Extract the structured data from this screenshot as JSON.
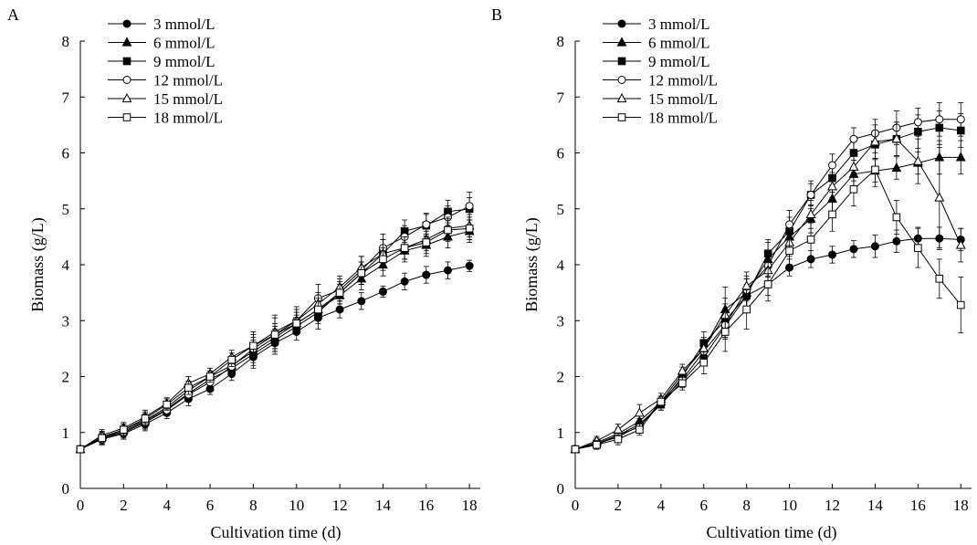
{
  "chart_data": [
    {
      "panel": "A",
      "type": "line",
      "xlabel": "Cultivation time (d)",
      "ylabel": "Biomass (g/L)",
      "xlim": [
        0,
        18.5
      ],
      "ylim": [
        0,
        8
      ],
      "xticks": [
        0,
        2,
        4,
        6,
        8,
        10,
        12,
        14,
        16,
        18
      ],
      "yticks": [
        0,
        1,
        2,
        3,
        4,
        5,
        6,
        7,
        8
      ],
      "legend_position": "top-left",
      "grid": false,
      "x": [
        0,
        1,
        2,
        3,
        4,
        5,
        6,
        7,
        8,
        9,
        10,
        11,
        12,
        13,
        14,
        15,
        16,
        17,
        18
      ],
      "series": [
        {
          "name": "3 mmol/L",
          "marker": "filled-circle",
          "values": [
            0.7,
            0.88,
            0.98,
            1.15,
            1.35,
            1.6,
            1.78,
            2.05,
            2.35,
            2.6,
            2.8,
            3.05,
            3.2,
            3.35,
            3.52,
            3.7,
            3.82,
            3.9,
            3.98
          ],
          "errors": [
            0.03,
            0.1,
            0.1,
            0.12,
            0.1,
            0.12,
            0.1,
            0.12,
            0.2,
            0.2,
            0.15,
            0.2,
            0.15,
            0.15,
            0.1,
            0.15,
            0.15,
            0.15,
            0.1
          ]
        },
        {
          "name": "6 mmol/L",
          "marker": "filled-triangle",
          "values": [
            0.7,
            0.92,
            1.05,
            1.22,
            1.45,
            1.75,
            2.0,
            2.2,
            2.45,
            2.7,
            2.95,
            3.2,
            3.45,
            3.75,
            4.0,
            4.25,
            4.35,
            4.5,
            4.6
          ],
          "errors": [
            0.03,
            0.1,
            0.1,
            0.12,
            0.1,
            0.12,
            0.1,
            0.12,
            0.2,
            0.2,
            0.15,
            0.2,
            0.15,
            0.2,
            0.2,
            0.2,
            0.2,
            0.2,
            0.2
          ]
        },
        {
          "name": "9 mmol/L",
          "marker": "filled-square",
          "values": [
            0.7,
            0.9,
            1.02,
            1.2,
            1.42,
            1.7,
            1.95,
            2.15,
            2.4,
            2.65,
            2.9,
            3.15,
            3.5,
            3.85,
            4.2,
            4.6,
            4.7,
            4.95,
            5.0
          ],
          "errors": [
            0.03,
            0.1,
            0.1,
            0.12,
            0.1,
            0.12,
            0.1,
            0.12,
            0.2,
            0.2,
            0.15,
            0.2,
            0.15,
            0.2,
            0.25,
            0.2,
            0.2,
            0.2,
            0.2
          ]
        },
        {
          "name": "12 mmol/L",
          "marker": "open-circle",
          "values": [
            0.7,
            0.88,
            1.0,
            1.18,
            1.4,
            1.68,
            1.9,
            2.18,
            2.5,
            2.75,
            3.0,
            3.4,
            3.55,
            3.9,
            4.3,
            4.5,
            4.72,
            4.85,
            5.05
          ],
          "errors": [
            0.03,
            0.1,
            0.1,
            0.12,
            0.1,
            0.12,
            0.1,
            0.12,
            0.2,
            0.3,
            0.25,
            0.25,
            0.2,
            0.25,
            0.25,
            0.2,
            0.2,
            0.2,
            0.25
          ]
        },
        {
          "name": "15 mmol/L",
          "marker": "open-triangle",
          "values": [
            0.7,
            0.95,
            1.08,
            1.28,
            1.52,
            1.88,
            2.05,
            2.35,
            2.55,
            2.8,
            3.0,
            3.3,
            3.6,
            3.95,
            4.2,
            4.3,
            4.45,
            4.65,
            4.7
          ],
          "errors": [
            0.03,
            0.1,
            0.1,
            0.12,
            0.1,
            0.12,
            0.1,
            0.12,
            0.25,
            0.3,
            0.2,
            0.2,
            0.2,
            0.2,
            0.25,
            0.2,
            0.2,
            0.2,
            0.2
          ]
        },
        {
          "name": "18 mmol/L",
          "marker": "open-square",
          "values": [
            0.7,
            0.9,
            1.05,
            1.25,
            1.5,
            1.8,
            2.0,
            2.3,
            2.55,
            2.75,
            2.95,
            3.2,
            3.5,
            3.85,
            4.1,
            4.3,
            4.4,
            4.62,
            4.65
          ],
          "errors": [
            0.03,
            0.1,
            0.1,
            0.12,
            0.1,
            0.12,
            0.1,
            0.12,
            0.2,
            0.2,
            0.2,
            0.2,
            0.2,
            0.2,
            0.2,
            0.2,
            0.2,
            0.2,
            0.2
          ]
        }
      ]
    },
    {
      "panel": "B",
      "type": "line",
      "xlabel": "Cultivation time (d)",
      "ylabel": "Biomass (g/L)",
      "xlim": [
        0,
        18.5
      ],
      "ylim": [
        0,
        8
      ],
      "xticks": [
        0,
        2,
        4,
        6,
        8,
        10,
        12,
        14,
        16,
        18
      ],
      "yticks": [
        0,
        1,
        2,
        3,
        4,
        5,
        6,
        7,
        8
      ],
      "legend_position": "top-left",
      "grid": false,
      "x": [
        0,
        1,
        2,
        3,
        4,
        5,
        6,
        7,
        8,
        9,
        10,
        11,
        12,
        13,
        14,
        15,
        16,
        17,
        18
      ],
      "series": [
        {
          "name": "3 mmol/L",
          "marker": "filled-circle",
          "values": [
            0.7,
            0.8,
            0.95,
            1.15,
            1.5,
            1.92,
            2.35,
            2.9,
            3.45,
            3.65,
            3.95,
            4.1,
            4.18,
            4.28,
            4.33,
            4.42,
            4.47,
            4.47,
            4.45
          ],
          "errors": [
            0.03,
            0.08,
            0.1,
            0.1,
            0.1,
            0.12,
            0.15,
            0.2,
            0.2,
            0.2,
            0.15,
            0.15,
            0.15,
            0.15,
            0.2,
            0.2,
            0.2,
            0.2,
            0.2
          ]
        },
        {
          "name": "6 mmol/L",
          "marker": "filled-triangle",
          "values": [
            0.7,
            0.82,
            0.98,
            1.2,
            1.55,
            2.05,
            2.5,
            3.2,
            3.5,
            4.1,
            4.5,
            4.82,
            5.18,
            5.62,
            5.68,
            5.73,
            5.82,
            5.92,
            5.92
          ],
          "errors": [
            0.03,
            0.08,
            0.1,
            0.1,
            0.1,
            0.12,
            0.15,
            0.4,
            0.3,
            0.3,
            0.25,
            0.25,
            0.25,
            0.25,
            0.2,
            0.2,
            0.2,
            0.3,
            0.3
          ]
        },
        {
          "name": "9 mmol/L",
          "marker": "filled-square",
          "values": [
            0.7,
            0.8,
            0.92,
            1.12,
            1.5,
            2.0,
            2.6,
            3.0,
            3.45,
            4.2,
            4.6,
            5.25,
            5.55,
            6.0,
            6.15,
            6.25,
            6.38,
            6.45,
            6.4
          ],
          "errors": [
            0.03,
            0.08,
            0.1,
            0.1,
            0.1,
            0.12,
            0.2,
            0.3,
            0.3,
            0.25,
            0.25,
            0.25,
            0.25,
            0.25,
            0.25,
            0.3,
            0.3,
            0.3,
            0.3
          ]
        },
        {
          "name": "12 mmol/L",
          "marker": "open-circle",
          "values": [
            0.7,
            0.78,
            0.95,
            1.1,
            1.55,
            1.95,
            2.45,
            2.92,
            3.55,
            3.98,
            4.72,
            5.25,
            5.78,
            6.25,
            6.35,
            6.45,
            6.55,
            6.6,
            6.6
          ],
          "errors": [
            0.03,
            0.08,
            0.1,
            0.1,
            0.1,
            0.12,
            0.15,
            0.25,
            0.2,
            0.2,
            0.25,
            0.2,
            0.2,
            0.2,
            0.25,
            0.3,
            0.25,
            0.3,
            0.3
          ]
        },
        {
          "name": "15 mmol/L",
          "marker": "open-triangle",
          "values": [
            0.7,
            0.85,
            1.05,
            1.35,
            1.6,
            2.1,
            2.5,
            3.1,
            3.62,
            3.9,
            4.4,
            4.9,
            5.4,
            5.75,
            6.2,
            6.25,
            5.85,
            5.2,
            4.35
          ],
          "errors": [
            0.03,
            0.08,
            0.1,
            0.15,
            0.1,
            0.12,
            0.2,
            0.3,
            0.25,
            0.25,
            0.25,
            0.25,
            0.25,
            0.25,
            0.3,
            0.3,
            0.4,
            0.9,
            0.3
          ]
        },
        {
          "name": "18 mmol/L",
          "marker": "open-square",
          "values": [
            0.7,
            0.78,
            0.88,
            1.05,
            1.55,
            1.88,
            2.25,
            2.8,
            3.2,
            3.65,
            4.25,
            4.45,
            4.9,
            5.35,
            5.7,
            4.85,
            4.3,
            3.75,
            3.28
          ],
          "errors": [
            0.03,
            0.08,
            0.1,
            0.1,
            0.1,
            0.12,
            0.2,
            0.35,
            0.35,
            0.3,
            0.3,
            0.3,
            0.3,
            0.3,
            0.3,
            0.3,
            0.35,
            0.35,
            0.5
          ]
        }
      ]
    }
  ]
}
